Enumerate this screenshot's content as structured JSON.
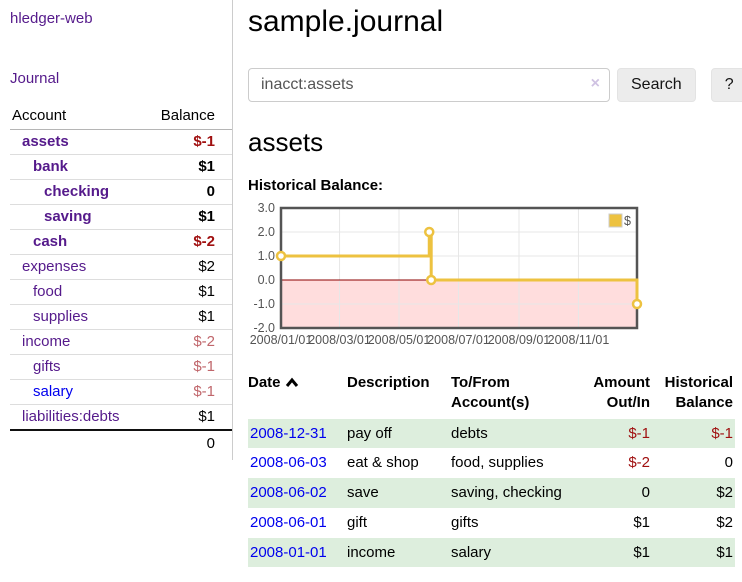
{
  "sidebar": {
    "brand": "hledger-web",
    "journal_link": "Journal",
    "table": {
      "account_header": "Account",
      "balance_header": "Balance",
      "rows": [
        {
          "account": "assets",
          "balance": "$-1",
          "indent": 1,
          "bold": true,
          "balance_style": "neg"
        },
        {
          "account": "bank",
          "balance": "$1",
          "indent": 2,
          "bold": true,
          "balance_style": "pos"
        },
        {
          "account": "checking",
          "balance": "0",
          "indent": 3,
          "bold": true,
          "balance_style": "pos"
        },
        {
          "account": "saving",
          "balance": "$1",
          "indent": 3,
          "bold": true,
          "balance_style": "pos"
        },
        {
          "account": "cash",
          "balance": "$-2",
          "indent": 2,
          "bold": true,
          "balance_style": "neg"
        },
        {
          "account": "expenses",
          "balance": "$2",
          "indent": 1,
          "bold": false,
          "balance_style": "pos"
        },
        {
          "account": "food",
          "balance": "$1",
          "indent": 2,
          "bold": false,
          "balance_style": "pos"
        },
        {
          "account": "supplies",
          "balance": "$1",
          "indent": 2,
          "bold": false,
          "balance_style": "pos"
        },
        {
          "account": "income",
          "balance": "$-2",
          "indent": 1,
          "bold": false,
          "balance_style": "neg-muted"
        },
        {
          "account": "gifts",
          "balance": "$-1",
          "indent": 2,
          "bold": false,
          "balance_style": "neg-muted"
        },
        {
          "account": "salary",
          "balance": "$-1",
          "indent": 2,
          "bold": false,
          "balance_style": "neg-muted",
          "link_color": "blue"
        },
        {
          "account": "liabilities:debts",
          "balance": "$1",
          "indent": 1,
          "bold": false,
          "balance_style": "pos"
        }
      ],
      "total": "0"
    }
  },
  "header": {
    "title": "sample.journal"
  },
  "search": {
    "query": "inacct:assets",
    "clear_icon": "×",
    "search_label": "Search",
    "help_label": "?"
  },
  "account_page": {
    "heading": "assets",
    "chart_title": "Historical Balance:"
  },
  "chart_data": {
    "type": "line",
    "style": "step",
    "title": "Historical Balance",
    "series": [
      {
        "name": "$",
        "color": "#edc240",
        "points": [
          [
            "2008-01-01",
            1
          ],
          [
            "2008-06-01",
            2
          ],
          [
            "2008-06-03",
            0
          ],
          [
            "2008-12-31",
            -1
          ]
        ]
      }
    ],
    "x_ticks": [
      "2008/01/01",
      "2008/03/01",
      "2008/05/01",
      "2008/07/01",
      "2008/09/01",
      "2008/11/01"
    ],
    "y_ticks": [
      "3.0",
      "2.0",
      "1.0",
      "0.0",
      "-1.0",
      "-2.0"
    ],
    "ylim": [
      -2,
      3
    ],
    "xlim": [
      "2008-01-01",
      "2008-12-31"
    ],
    "grid": true,
    "legend_position": "top-right",
    "negative_region_fill": "#ffdddd",
    "zero_line_color": "#8b0000",
    "border_color": "#545454",
    "grid_color": "#e7e7e7",
    "axis_text_color": "#545454"
  },
  "register": {
    "columns": [
      "Date",
      "Description",
      "To/From Account(s)",
      "Amount Out/In",
      "Historical Balance"
    ],
    "sort": {
      "column": "Date",
      "direction": "asc"
    },
    "rows": [
      {
        "date": "2008-12-31",
        "description": "pay off",
        "accounts": "debts",
        "amount": "$-1",
        "balance": "$-1"
      },
      {
        "date": "2008-06-03",
        "description": "eat & shop",
        "accounts": "food, supplies",
        "amount": "$-2",
        "balance": "0"
      },
      {
        "date": "2008-06-02",
        "description": "save",
        "accounts": "saving, checking",
        "amount": "0",
        "balance": "$2"
      },
      {
        "date": "2008-06-01",
        "description": "gift",
        "accounts": "gifts",
        "amount": "$1",
        "balance": "$2"
      },
      {
        "date": "2008-01-01",
        "description": "income",
        "accounts": "salary",
        "amount": "$1",
        "balance": "$1"
      }
    ]
  },
  "colors": {
    "link_purple": "#551a8b",
    "link_blue": "#0000ee",
    "negative_strong": "#a01010",
    "negative_muted": "#c0666b",
    "row_green": "#ddeedd",
    "series_yellow": "#edc240"
  }
}
